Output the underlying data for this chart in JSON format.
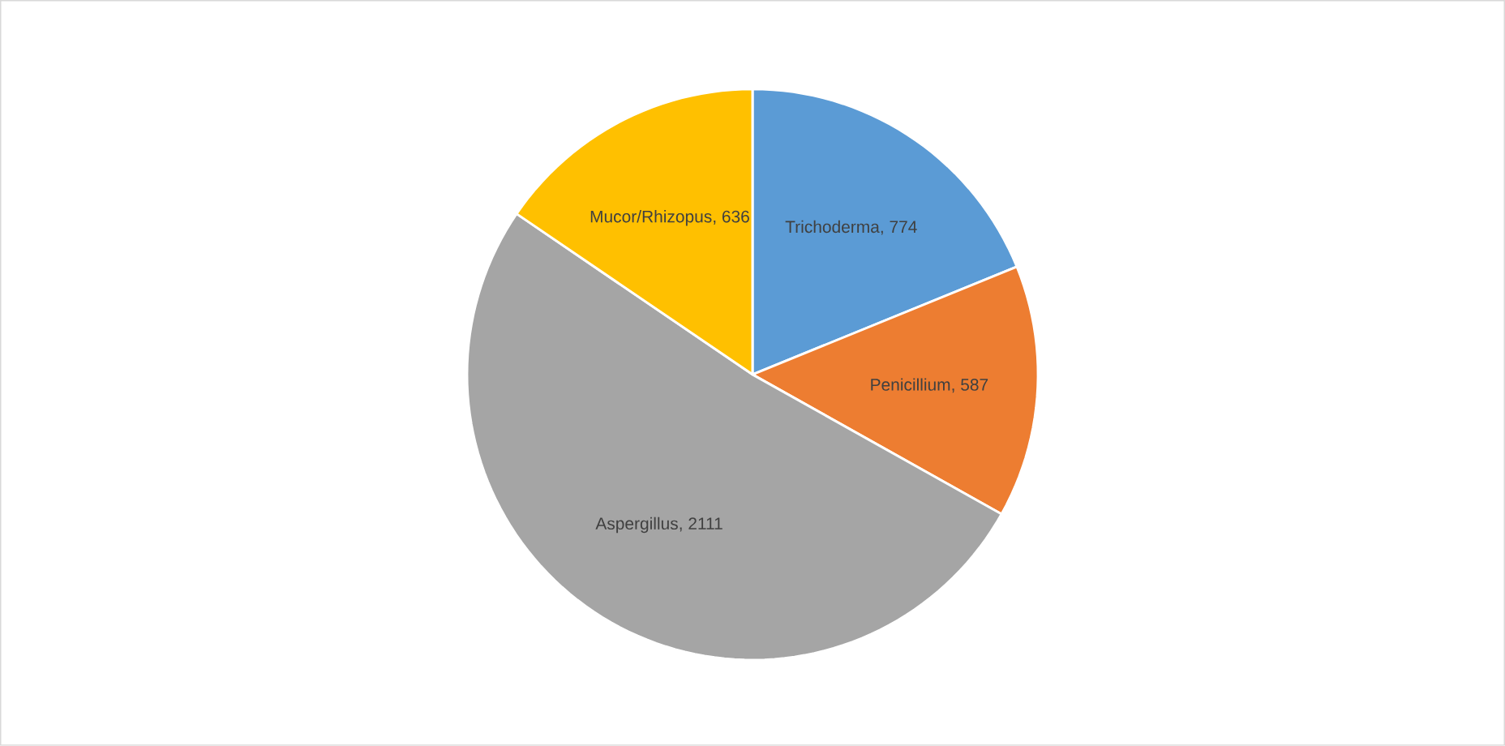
{
  "chart_data": {
    "type": "pie",
    "categories": [
      "Trichoderma",
      "Penicillium",
      "Aspergillus",
      "Mucor/Rhizopus"
    ],
    "values": [
      774,
      587,
      2111,
      636
    ],
    "colors": [
      "#5b9bd5",
      "#ed7d31",
      "#a5a5a5",
      "#ffc000"
    ],
    "value_labels": [
      ", 774",
      ", 587",
      ", 2111",
      ", 636"
    ]
  }
}
